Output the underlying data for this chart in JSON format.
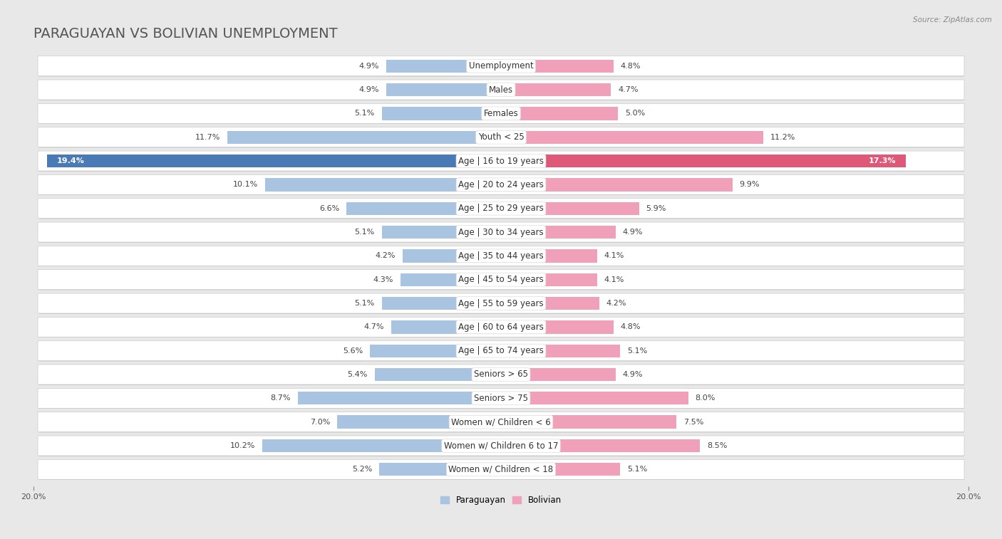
{
  "title": "PARAGUAYAN VS BOLIVIAN UNEMPLOYMENT",
  "source": "Source: ZipAtlas.com",
  "categories": [
    "Unemployment",
    "Males",
    "Females",
    "Youth < 25",
    "Age | 16 to 19 years",
    "Age | 20 to 24 years",
    "Age | 25 to 29 years",
    "Age | 30 to 34 years",
    "Age | 35 to 44 years",
    "Age | 45 to 54 years",
    "Age | 55 to 59 years",
    "Age | 60 to 64 years",
    "Age | 65 to 74 years",
    "Seniors > 65",
    "Seniors > 75",
    "Women w/ Children < 6",
    "Women w/ Children 6 to 17",
    "Women w/ Children < 18"
  ],
  "paraguayan": [
    4.9,
    4.9,
    5.1,
    11.7,
    19.4,
    10.1,
    6.6,
    5.1,
    4.2,
    4.3,
    5.1,
    4.7,
    5.6,
    5.4,
    8.7,
    7.0,
    10.2,
    5.2
  ],
  "bolivian": [
    4.8,
    4.7,
    5.0,
    11.2,
    17.3,
    9.9,
    5.9,
    4.9,
    4.1,
    4.1,
    4.2,
    4.8,
    5.1,
    4.9,
    8.0,
    7.5,
    8.5,
    5.1
  ],
  "paraguayan_color": "#a8c4e0",
  "bolivian_color": "#f0a0b8",
  "paraguayan_highlight_color": "#4a7ab5",
  "bolivian_highlight_color": "#e05878",
  "axis_max": 20.0,
  "background_color": "#e8e8e8",
  "row_bg_color": "#ffffff",
  "row_border_color": "#cccccc",
  "highlight_row": 4,
  "title_fontsize": 14,
  "label_fontsize": 8.5,
  "value_fontsize": 8.0
}
